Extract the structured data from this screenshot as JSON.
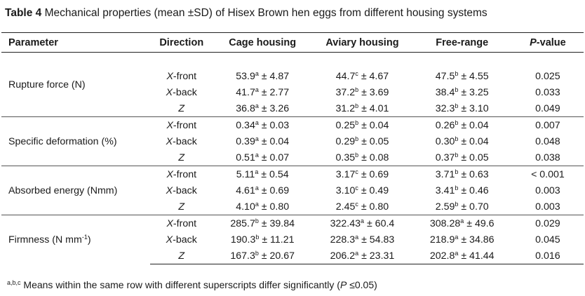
{
  "caption": {
    "label": "Table 4",
    "text": "Mechanical properties (mean ±SD) of Hisex Brown hen eggs from different housing systems"
  },
  "headers": {
    "parameter": "Parameter",
    "direction": "Direction",
    "cage": "Cage housing",
    "aviary": "Aviary housing",
    "free": "Free-range",
    "p_prefix": "P",
    "p_suffix": "-value"
  },
  "groups": [
    {
      "parameter": "Rupture force (N)",
      "rows": [
        {
          "dir_axis": "X",
          "dir_suffix": "-front",
          "cage": [
            "53.9",
            "a",
            " ± 4.87"
          ],
          "aviary": [
            "44.7",
            "c",
            " ± 4.67"
          ],
          "free": [
            "47.5",
            "b",
            " ± 4.55"
          ],
          "p": "0.025"
        },
        {
          "dir_axis": "X",
          "dir_suffix": "-back",
          "cage": [
            "41.7",
            "a",
            " ± 2.77"
          ],
          "aviary": [
            "37.2",
            "b",
            " ± 3.69"
          ],
          "free": [
            "38.4",
            "b",
            " ± 3.25"
          ],
          "p": "0.033"
        },
        {
          "dir_axis": "Z",
          "dir_suffix": "",
          "cage": [
            "36.8",
            "a",
            " ± 3.26"
          ],
          "aviary": [
            "31.2",
            "b",
            " ± 4.01"
          ],
          "free": [
            "32.3",
            "b",
            " ± 3.10"
          ],
          "p": "0.049"
        }
      ]
    },
    {
      "parameter": "Specific deformation (%)",
      "rows": [
        {
          "dir_axis": "X",
          "dir_suffix": "-front",
          "cage": [
            "0.34",
            "a",
            " ± 0.03"
          ],
          "aviary": [
            "0.25",
            "b",
            " ± 0.04"
          ],
          "free": [
            "0.26",
            "b",
            " ± 0.04"
          ],
          "p": "0.007"
        },
        {
          "dir_axis": "X",
          "dir_suffix": "-back",
          "cage": [
            "0.39",
            "a",
            " ± 0.04"
          ],
          "aviary": [
            "0.29",
            "b",
            " ± 0.05"
          ],
          "free": [
            "0.30",
            "b",
            " ± 0.04"
          ],
          "p": "0.048"
        },
        {
          "dir_axis": "Z",
          "dir_suffix": "",
          "cage": [
            "0.51",
            "a",
            " ± 0.07"
          ],
          "aviary": [
            "0.35",
            "b",
            " ± 0.08"
          ],
          "free": [
            "0.37",
            "b",
            " ± 0.05"
          ],
          "p": "0.038"
        }
      ]
    },
    {
      "parameter": "Absorbed energy (Nmm)",
      "rows": [
        {
          "dir_axis": "X",
          "dir_suffix": "-front",
          "cage": [
            "5.11",
            "a",
            " ± 0.54"
          ],
          "aviary": [
            "3.17",
            "c",
            " ± 0.69"
          ],
          "free": [
            "3.71",
            "b",
            " ± 0.63"
          ],
          "p": "< 0.001"
        },
        {
          "dir_axis": "X",
          "dir_suffix": "-back",
          "cage": [
            "4.61",
            "a",
            " ± 0.69"
          ],
          "aviary": [
            "3.10",
            "c",
            " ± 0.49"
          ],
          "free": [
            "3.41",
            "b",
            " ± 0.46"
          ],
          "p": "0.003"
        },
        {
          "dir_axis": "Z",
          "dir_suffix": "",
          "cage": [
            "4.10",
            "a",
            " ± 0.80"
          ],
          "aviary": [
            "2.45",
            "c",
            " ± 0.80"
          ],
          "free": [
            "2.59",
            "b",
            " ± 0.70"
          ],
          "p": "0.003"
        }
      ]
    },
    {
      "parameter": "Firmness (N mm",
      "parameter_sup": "-1",
      "parameter_tail": ")",
      "rows": [
        {
          "dir_axis": "X",
          "dir_suffix": "-front",
          "cage": [
            "285.7",
            "b",
            " ± 39.84"
          ],
          "aviary": [
            "322.43",
            "a",
            " ± 60.4"
          ],
          "free": [
            "308.28",
            "a",
            " ± 49.6"
          ],
          "p": "0.029"
        },
        {
          "dir_axis": "X",
          "dir_suffix": "-back",
          "cage": [
            "190.3",
            "b",
            " ± 11.21"
          ],
          "aviary": [
            "228.3",
            "a",
            " ± 54.83"
          ],
          "free": [
            "218.9",
            "a",
            " ± 34.86"
          ],
          "p": "0.045"
        },
        {
          "dir_axis": "Z",
          "dir_suffix": "",
          "cage": [
            "167.3",
            "b",
            " ± 20.67"
          ],
          "aviary": [
            "206.2",
            "a",
            " ± 23.31"
          ],
          "free": [
            "202.8",
            "a",
            " ± 41.44"
          ],
          "p": "0.016"
        }
      ]
    }
  ],
  "footnote": {
    "sup": "a,b,c",
    "text": " Means within the same row with different superscripts differ significantly (",
    "p_label": "P",
    "tail": " ≤0.05)"
  }
}
